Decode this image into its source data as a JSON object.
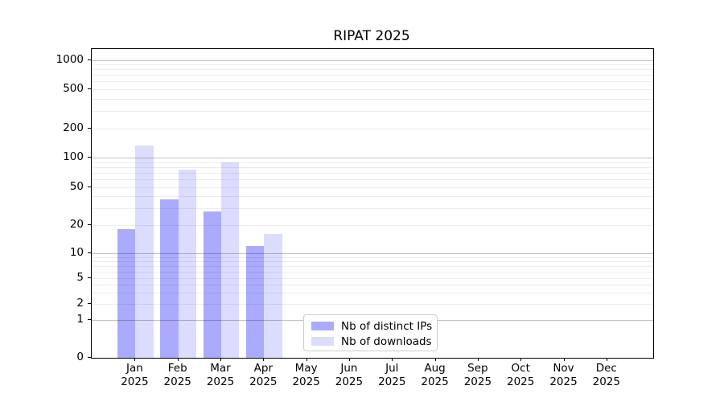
{
  "title": "RIPAT 2025",
  "chart_data": {
    "type": "bar",
    "title": "RIPAT 2025",
    "categories": [
      "Jan 2025",
      "Feb 2025",
      "Mar 2025",
      "Apr 2025",
      "May 2025",
      "Jun 2025",
      "Jul 2025",
      "Aug 2025",
      "Sep 2025",
      "Oct 2025",
      "Nov 2025",
      "Dec 2025"
    ],
    "series": [
      {
        "name": "Nb of distinct IPs",
        "color": "#aaaaff",
        "values": [
          18,
          37,
          28,
          12,
          0,
          0,
          0,
          0,
          0,
          0,
          0,
          0
        ]
      },
      {
        "name": "Nb of downloads",
        "color": "#dcdcff",
        "values": [
          133,
          75,
          90,
          16,
          0,
          0,
          0,
          0,
          0,
          0,
          0,
          0
        ]
      }
    ],
    "xlabel": "",
    "ylabel": "",
    "yscale": "symlog",
    "yticks": [
      0,
      1,
      2,
      5,
      10,
      20,
      50,
      100,
      200,
      500,
      1000
    ],
    "ylim": [
      0,
      1300
    ],
    "grid": true,
    "legend_position": "lower-center-inside"
  }
}
